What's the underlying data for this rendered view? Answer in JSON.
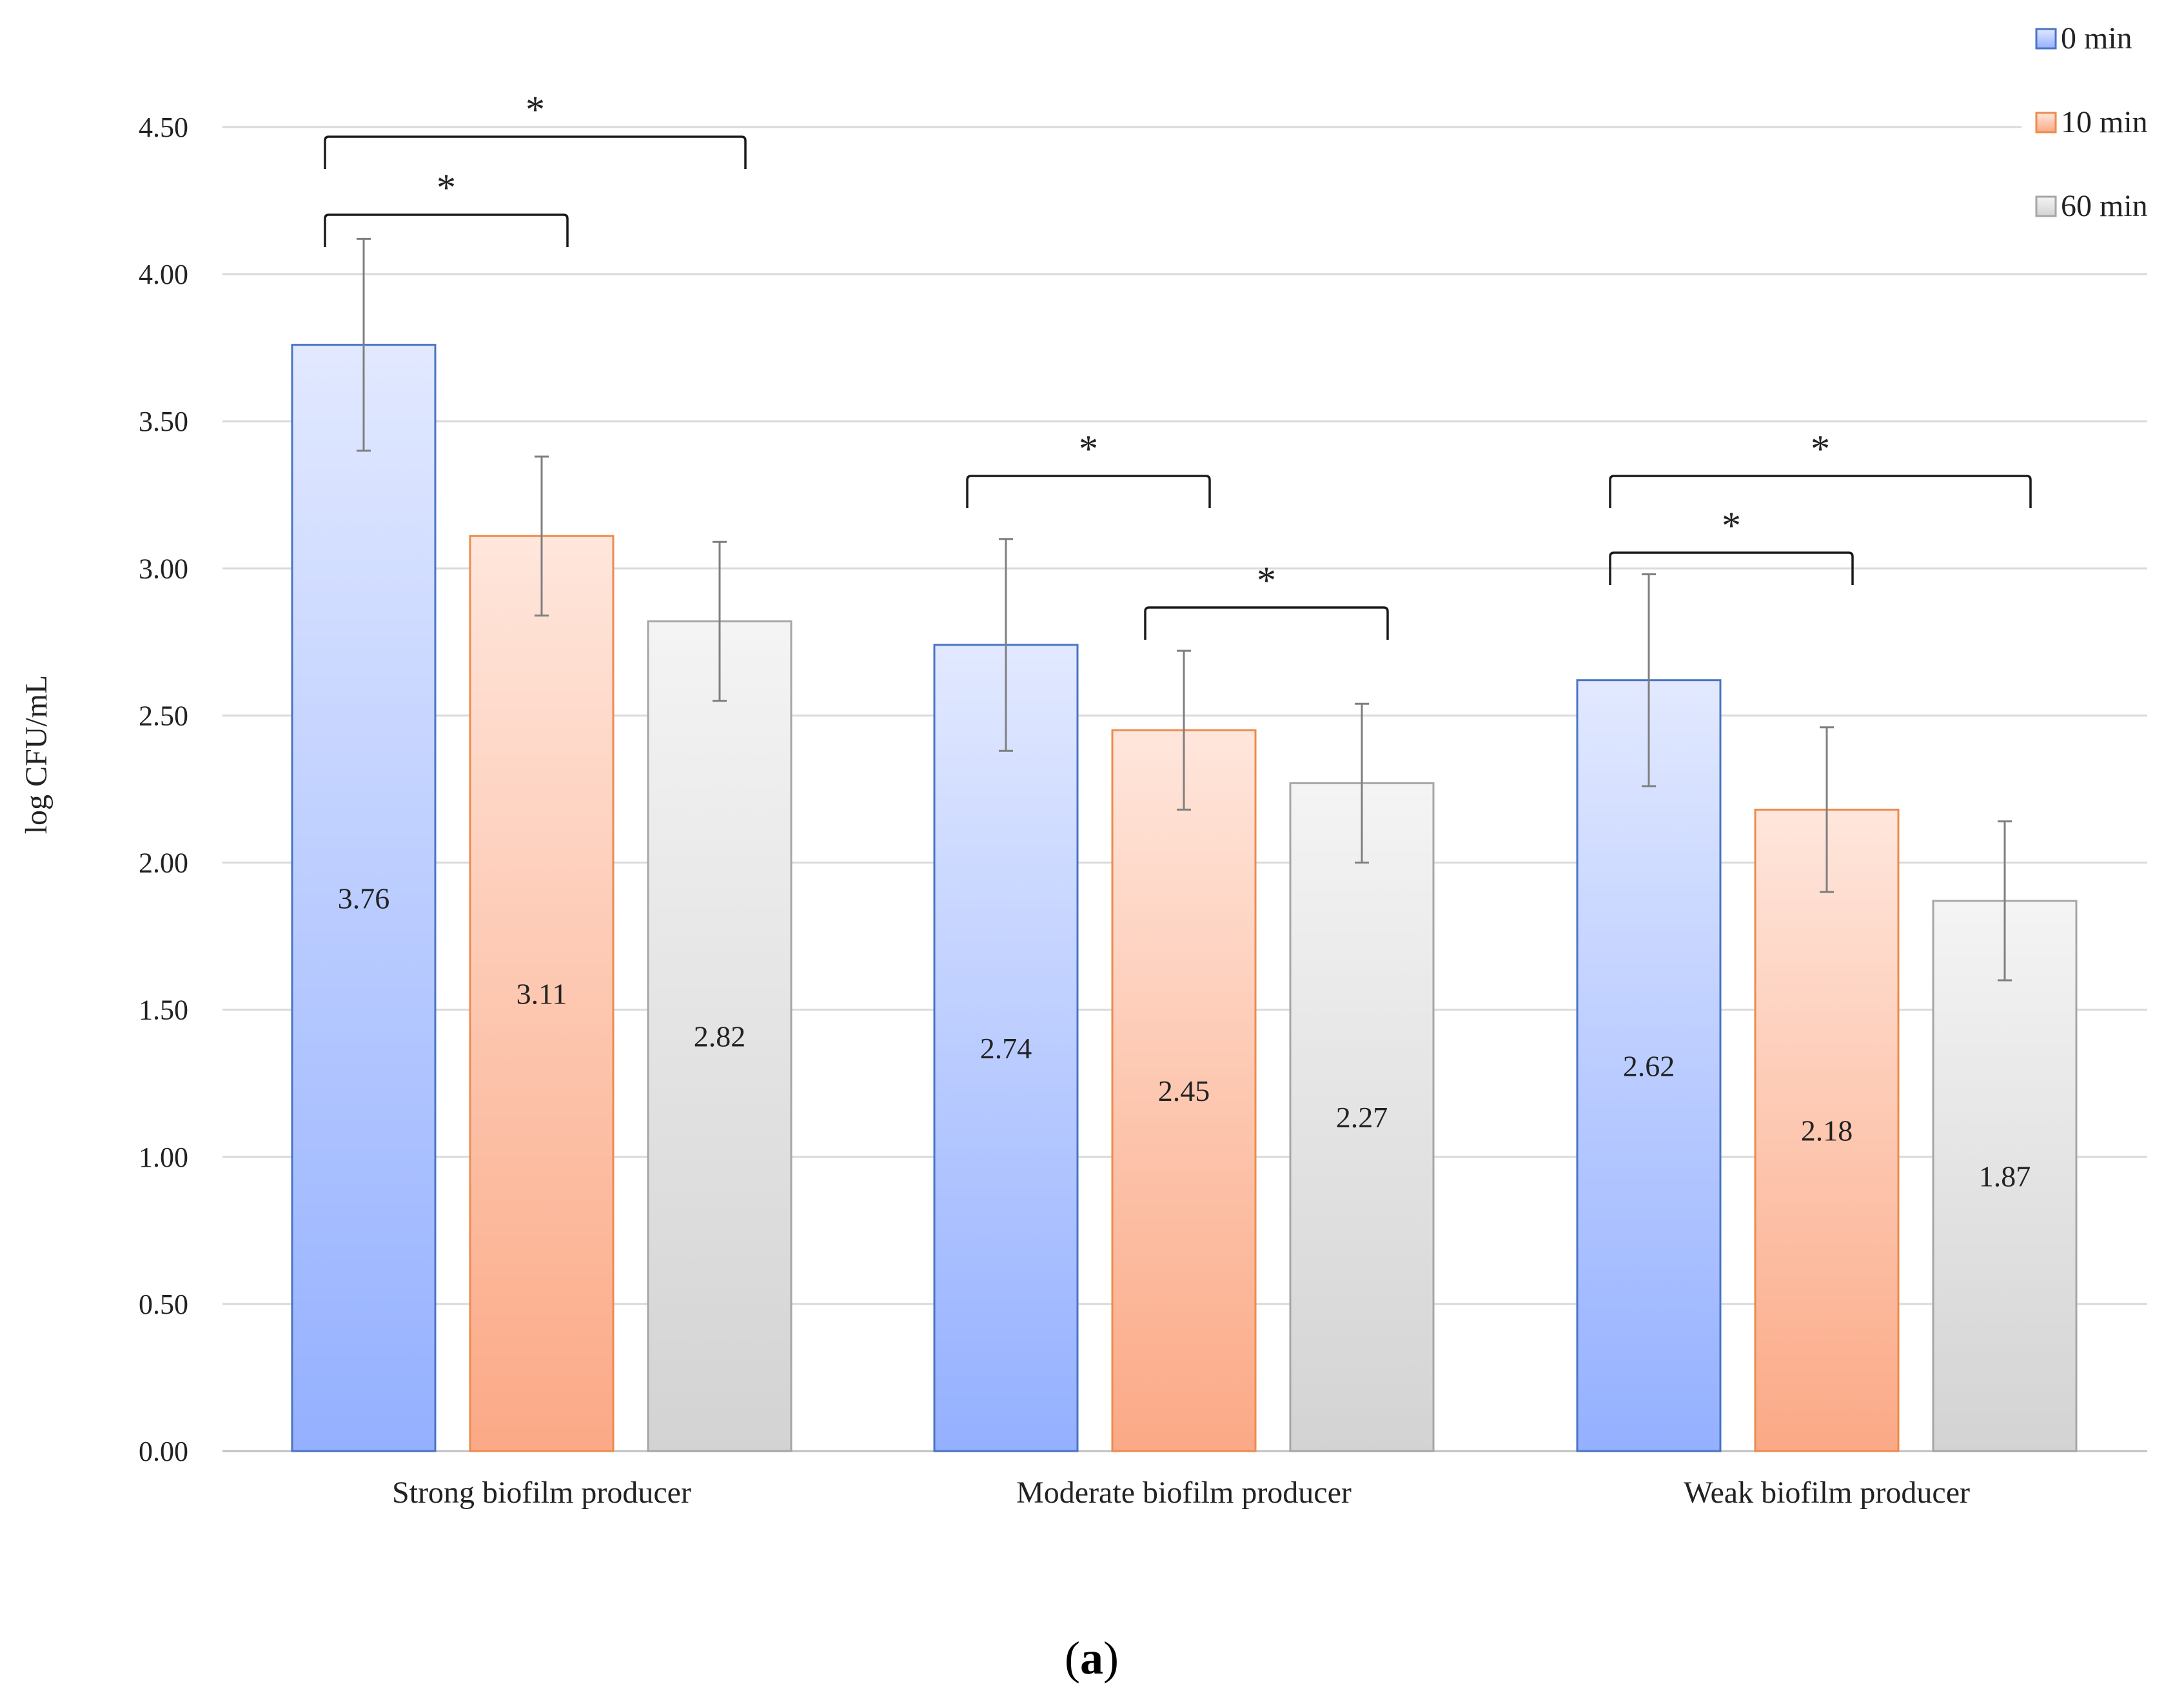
{
  "chart_data": {
    "type": "bar",
    "categories": [
      "Strong biofilm producer",
      "Moderate biofilm producer",
      "Weak biofilm producer"
    ],
    "series": [
      {
        "name": "0 min",
        "values": [
          3.76,
          2.74,
          2.62
        ],
        "errors": [
          0.36,
          0.36,
          0.36
        ]
      },
      {
        "name": "10 min",
        "values": [
          3.11,
          2.45,
          2.18
        ],
        "errors": [
          0.27,
          0.27,
          0.28
        ]
      },
      {
        "name": "60 min",
        "values": [
          2.82,
          2.27,
          1.87
        ],
        "errors": [
          0.27,
          0.27,
          0.27
        ]
      }
    ],
    "ylabel": "log CFU/mL",
    "xlabel": "",
    "ylim": [
      0,
      4.5
    ],
    "yticks": [
      "0.00",
      "0.50",
      "1.00",
      "1.50",
      "2.00",
      "2.50",
      "3.00",
      "3.50",
      "4.00",
      "4.50"
    ],
    "grid": true,
    "legend_position": "top-right",
    "significance": [
      {
        "category": 0,
        "from_series": 0,
        "to_series": 2,
        "label": "*"
      },
      {
        "category": 0,
        "from_series": 0,
        "to_series": 1,
        "label": "*"
      },
      {
        "category": 1,
        "from_series": 0,
        "to_series": 1,
        "label": "*"
      },
      {
        "category": 1,
        "from_series": 1,
        "to_series": 2,
        "label": "*"
      },
      {
        "category": 2,
        "from_series": 0,
        "to_series": 2,
        "label": "*"
      },
      {
        "category": 2,
        "from_series": 0,
        "to_series": 1,
        "label": "*"
      }
    ],
    "colors": {
      "0 min": {
        "top": "#e2e9ff",
        "bottom": "#94b0ff",
        "border": "#4a74c4"
      },
      "10 min": {
        "top": "#ffe6dc",
        "bottom": "#fba986",
        "border": "#ec8b4e"
      },
      "60 min": {
        "top": "#f4f4f4",
        "bottom": "#d3d3d3",
        "border": "#a6a6a6"
      }
    }
  },
  "subfigure": {
    "open": "(",
    "letter": "a",
    "close": ")"
  }
}
